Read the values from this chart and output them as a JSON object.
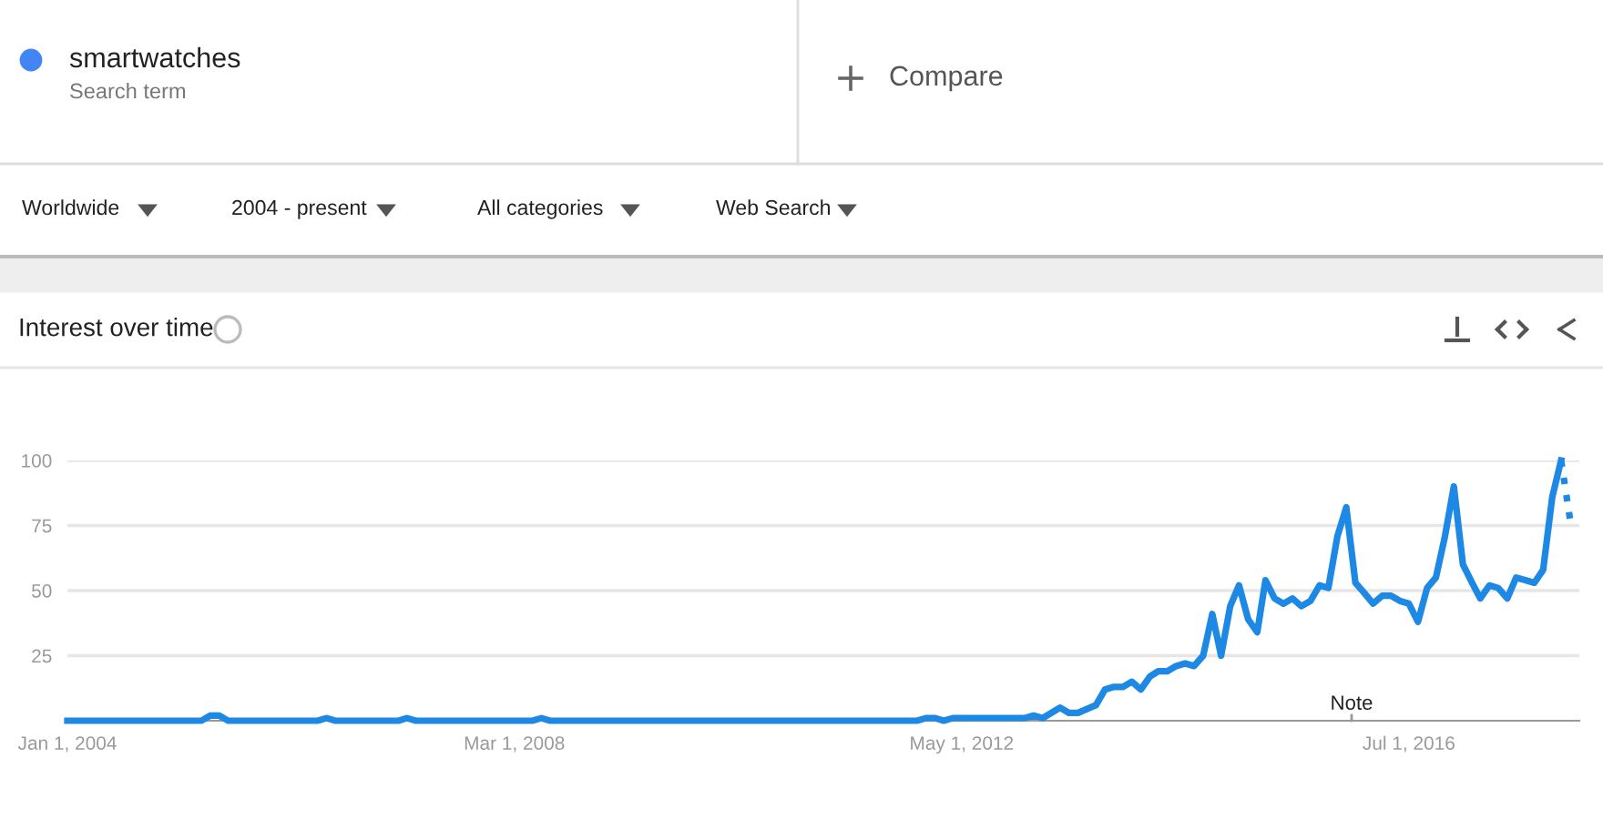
{
  "chart_data": [
    {
      "type": "other",
      "annotations": [
        "smartwatches",
        "Search term",
        "Compare",
        "Worldwide",
        "2004 - present",
        "All categories",
        "Web Search"
      ]
    },
    {
      "type": "line",
      "title": "Interest over time",
      "xlim": [
        "2004-01",
        "2018-02"
      ],
      "xticks": [
        {
          "value": "2004-01-01",
          "label": "Jan 1, 2004"
        },
        {
          "value": "2008-03-01",
          "label": "Mar 1, 2008"
        },
        {
          "value": "2012-05-01",
          "label": "May 1, 2012"
        },
        {
          "value": "2016-07-01",
          "label": "Jul 1, 2016"
        }
      ],
      "ylim": [
        0,
        100
      ],
      "yticks": [
        25,
        50,
        75,
        100
      ],
      "grid": "y",
      "legend": false,
      "annotations": [
        "Note"
      ],
      "series": [
        {
          "color": "#1e88e5",
          "line_style": "solid",
          "x": [
            "2004-01",
            "2005-04",
            "2005-05",
            "2005-06",
            "2005-07",
            "2006-05",
            "2006-06",
            "2006-07",
            "2007-02",
            "2007-03",
            "2007-04",
            "2008-05",
            "2008-06",
            "2008-07",
            "2011-12",
            "2012-01",
            "2012-02",
            "2012-03",
            "2012-04",
            "2012-12",
            "2013-01",
            "2013-02",
            "2013-04",
            "2013-05",
            "2013-06",
            "2013-08",
            "2013-09",
            "2013-10",
            "2013-11",
            "2013-12",
            "2014-01",
            "2014-02",
            "2014-03",
            "2014-04",
            "2014-05",
            "2014-06",
            "2014-07",
            "2014-08",
            "2014-09",
            "2014-10",
            "2014-11",
            "2014-12",
            "2015-01",
            "2015-02",
            "2015-03",
            "2015-04",
            "2015-05",
            "2015-06",
            "2015-07",
            "2015-08",
            "2015-09",
            "2015-10",
            "2015-11",
            "2015-12",
            "2016-01",
            "2016-02",
            "2016-03",
            "2016-04",
            "2016-05",
            "2016-06",
            "2016-07",
            "2016-08",
            "2016-09",
            "2016-10",
            "2016-11",
            "2016-12",
            "2017-01",
            "2017-02",
            "2017-03",
            "2017-04",
            "2017-05",
            "2017-06",
            "2017-07",
            "2017-08",
            "2017-09",
            "2017-10",
            "2017-11",
            "2017-12"
          ],
          "values": [
            0,
            0,
            2,
            2,
            0,
            0,
            1,
            0,
            0,
            1,
            0,
            0,
            1,
            0,
            0,
            1,
            1,
            0,
            1,
            1,
            2,
            1,
            5,
            3,
            3,
            6,
            12,
            13,
            13,
            15,
            12,
            17,
            19,
            19,
            21,
            22,
            21,
            25,
            41,
            25,
            44,
            52,
            39,
            34,
            54,
            47,
            45,
            47,
            44,
            46,
            52,
            51,
            71,
            82,
            53,
            49,
            45,
            48,
            48,
            46,
            45,
            38,
            51,
            55,
            71,
            90,
            60,
            53,
            47,
            52,
            51,
            47,
            55,
            54,
            53,
            58,
            86,
            100
          ]
        },
        {
          "color": "#1e88e5",
          "line_style": "dotted",
          "x": [
            "2017-12",
            "2018-01"
          ],
          "values": [
            100,
            77
          ]
        }
      ]
    }
  ]
}
